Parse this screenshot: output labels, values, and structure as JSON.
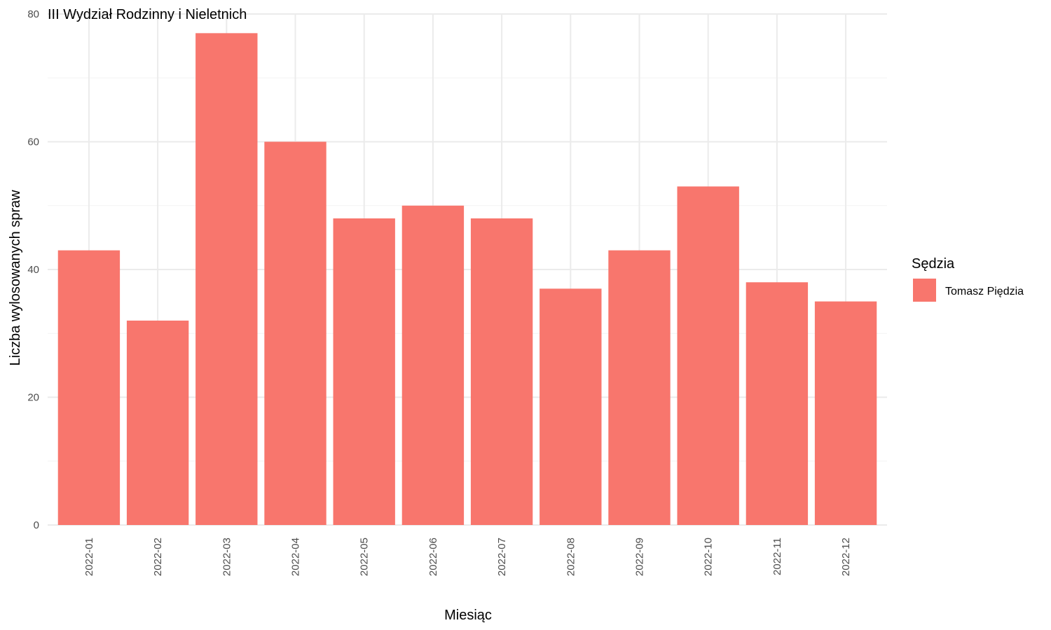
{
  "chart_data": {
    "type": "bar",
    "title": "III Wydział Rodzinny i Nieletnich",
    "xlabel": "Miesiąc",
    "ylabel": "Liczba wylosowanych spraw",
    "categories": [
      "2022-01",
      "2022-02",
      "2022-03",
      "2022-04",
      "2022-05",
      "2022-06",
      "2022-07",
      "2022-08",
      "2022-09",
      "2022-10",
      "2022-11",
      "2022-12"
    ],
    "series": [
      {
        "name": "Tomasz Piędzia",
        "color": "#F8766D",
        "values": [
          43,
          32,
          77,
          60,
          48,
          50,
          48,
          37,
          43,
          53,
          38,
          35
        ]
      }
    ],
    "ylim": [
      0,
      80
    ],
    "yticks": [
      0,
      20,
      40,
      60,
      80
    ],
    "grid": true,
    "legend": {
      "title": "Sędzia",
      "position": "right"
    }
  }
}
